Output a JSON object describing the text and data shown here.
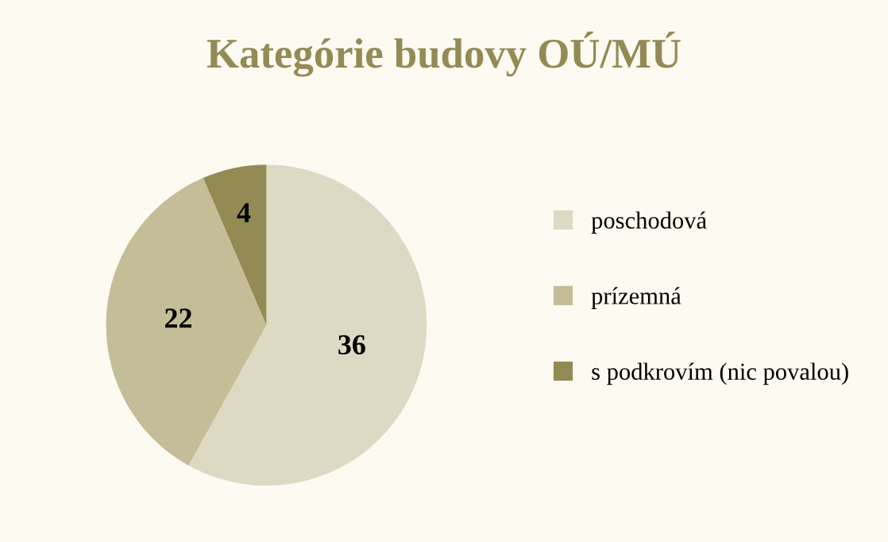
{
  "chart_data": {
    "type": "pie",
    "title": "Kategórie budovy OÚ/MÚ",
    "categories": [
      "poschodová",
      "prízemná",
      "s podkrovím (nic povalou)"
    ],
    "values": [
      36,
      22,
      4
    ],
    "colors": [
      "#ddd9c3",
      "#c4bd97",
      "#948a54"
    ],
    "data_labels": true,
    "legend": "right"
  }
}
